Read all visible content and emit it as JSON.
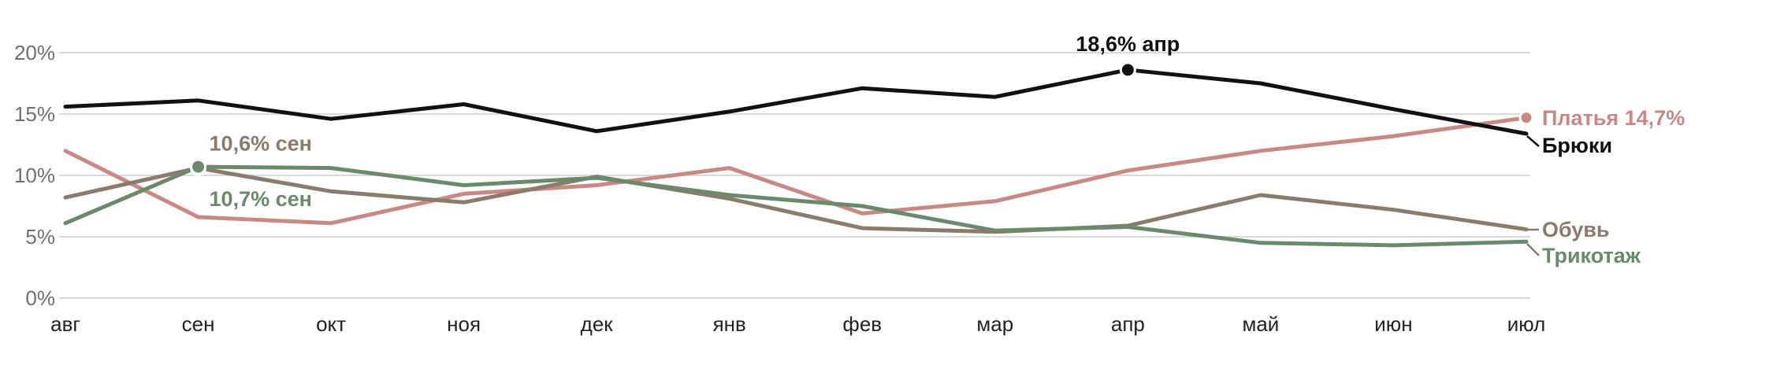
{
  "chart_data": {
    "type": "line",
    "categories": [
      "авг",
      "сен",
      "окт",
      "ноя",
      "дек",
      "янв",
      "фев",
      "мар",
      "апр",
      "май",
      "июн",
      "июл"
    ],
    "y_ticks": [
      "0%",
      "5%",
      "10%",
      "15%",
      "20%"
    ],
    "ylim": [
      0,
      20
    ],
    "grid": true,
    "series": [
      {
        "name": "Брюки",
        "color": "#111111",
        "values": [
          15.6,
          16.1,
          14.6,
          15.8,
          13.6,
          15.2,
          17.1,
          16.4,
          18.6,
          17.5,
          15.4,
          13.4
        ]
      },
      {
        "name": "Платья",
        "color": "#c98883",
        "values": [
          12.0,
          6.6,
          6.1,
          8.5,
          9.2,
          10.6,
          6.9,
          7.9,
          10.4,
          12.0,
          13.2,
          14.7
        ]
      },
      {
        "name": "Обувь",
        "color": "#8c7a6b",
        "values": [
          8.2,
          10.6,
          8.7,
          7.8,
          9.9,
          8.1,
          5.7,
          5.4,
          5.9,
          8.4,
          7.2,
          5.6
        ]
      },
      {
        "name": "Трикотаж",
        "color": "#6a8a6a",
        "values": [
          6.1,
          10.7,
          10.6,
          9.2,
          9.8,
          8.4,
          7.5,
          5.5,
          5.8,
          4.5,
          4.3,
          4.6
        ]
      }
    ],
    "annotations": [
      {
        "text": "18,6% апр",
        "series": "Брюки",
        "index": 8,
        "color": "#111111"
      },
      {
        "text": "10,6% сен",
        "series": "Обувь",
        "index": 1,
        "color": "#8c7a6b"
      },
      {
        "text": "10,7% сен",
        "series": "Трикотаж",
        "index": 1,
        "color": "#6a8a6a"
      }
    ],
    "end_labels": [
      {
        "text": "Платья 14,7%",
        "series": "Платья",
        "color": "#c98883"
      },
      {
        "text": "Брюки",
        "series": "Брюки",
        "color": "#111111"
      },
      {
        "text": "Обувь",
        "series": "Обувь",
        "color": "#8c7a6b"
      },
      {
        "text": "Трикотаж",
        "series": "Трикотаж",
        "color": "#6a8a6a"
      }
    ]
  }
}
